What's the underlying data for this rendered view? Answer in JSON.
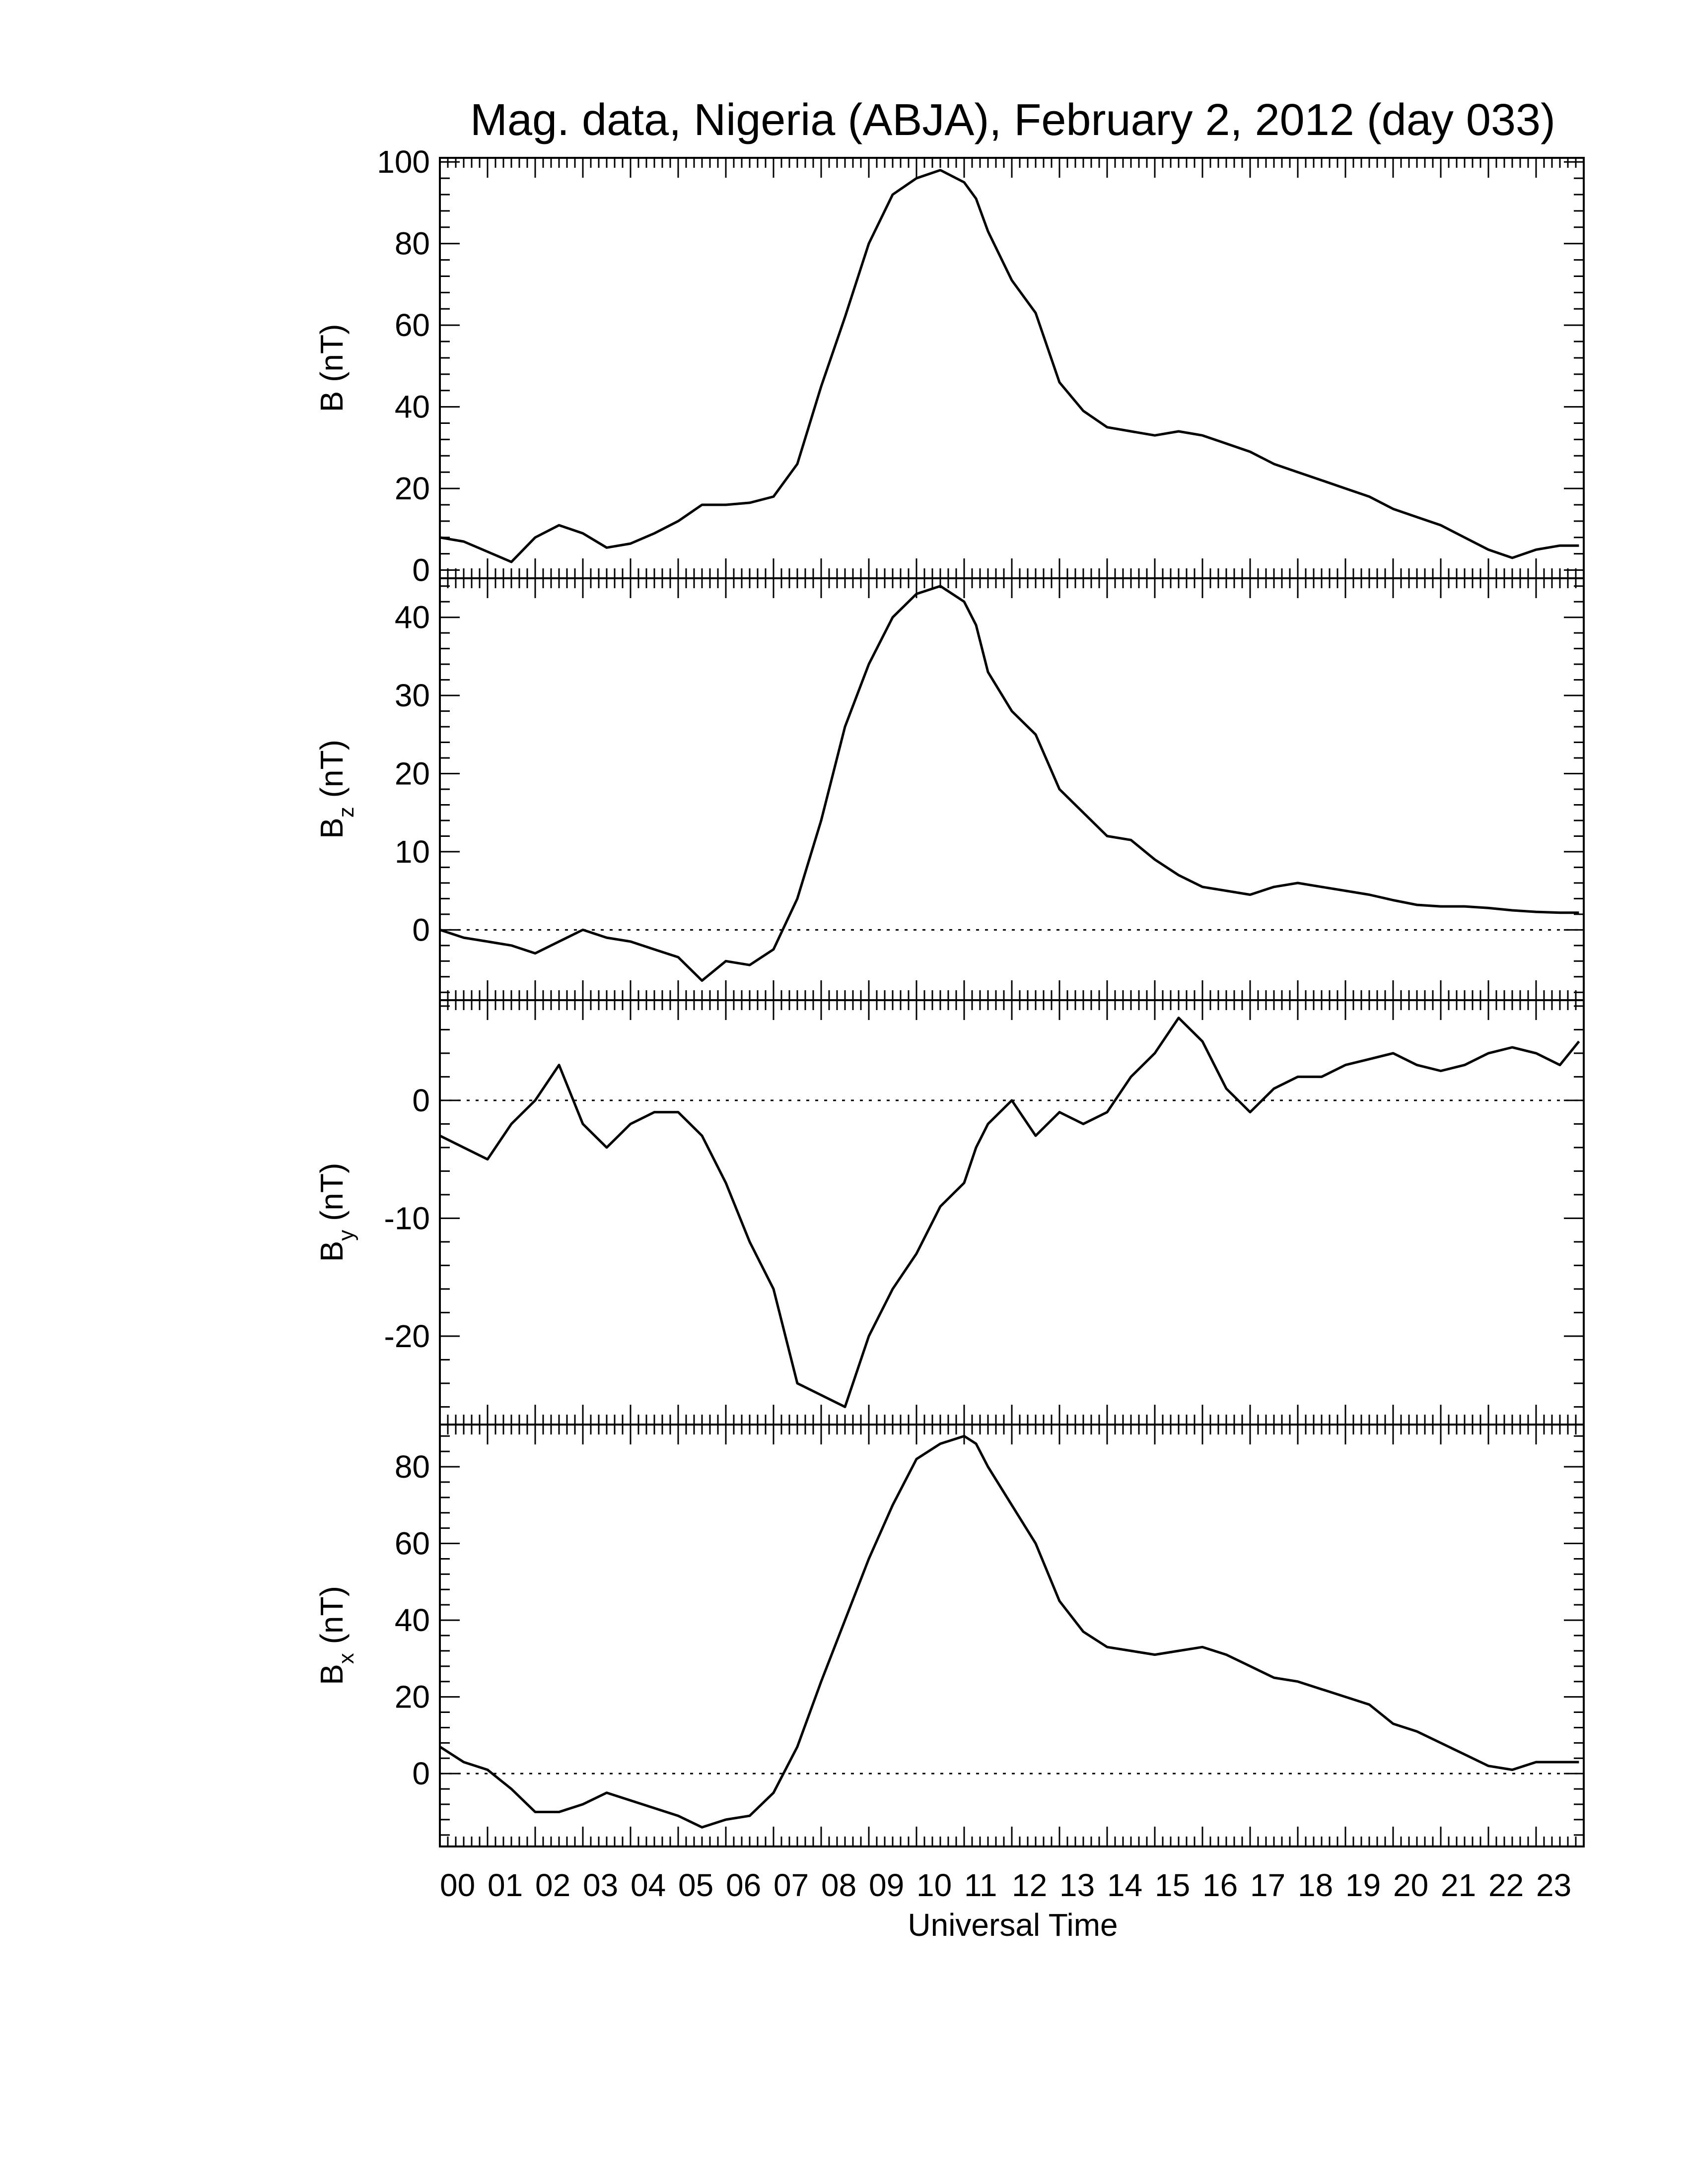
{
  "title": "Mag. data, Nigeria (ABJA), February 2, 2012 (day 033)",
  "xlabel": "Universal Time",
  "xticks": [
    "00",
    "01",
    "02",
    "03",
    "04",
    "05",
    "06",
    "07",
    "08",
    "09",
    "10",
    "11",
    "12",
    "13",
    "14",
    "15",
    "16",
    "17",
    "18",
    "19",
    "20",
    "21",
    "22",
    "23"
  ],
  "chart_data": [
    {
      "type": "line",
      "panel": "B",
      "ylabel_main": "B (nT)",
      "ylabel_sub": "",
      "ylabel_tail": "",
      "ylim": [
        -2,
        101
      ],
      "yticks": [
        0,
        20,
        40,
        60,
        80,
        100
      ],
      "zero_line": false,
      "xlim": [
        0,
        24
      ],
      "x": [
        0,
        0.5,
        1,
        1.5,
        2,
        2.5,
        3,
        3.5,
        4,
        4.5,
        5,
        5.5,
        6,
        6.5,
        7,
        7.5,
        8,
        8.5,
        9,
        9.5,
        10,
        10.5,
        11,
        11.25,
        11.5,
        12,
        12.5,
        13,
        13.5,
        14,
        14.5,
        15,
        15.5,
        16,
        16.5,
        17,
        17.5,
        18,
        18.5,
        19,
        19.5,
        20,
        20.5,
        21,
        21.5,
        22,
        22.5,
        23,
        23.5,
        23.9
      ],
      "y": [
        8,
        7,
        4.5,
        2,
        8,
        11,
        9,
        5.5,
        6.5,
        9,
        12,
        16,
        16,
        16.5,
        18,
        26,
        45,
        62,
        80,
        92,
        96,
        98,
        95,
        91,
        83,
        71,
        63,
        46,
        39,
        35,
        34,
        33,
        34,
        33,
        31,
        29,
        26,
        24,
        22,
        20,
        18,
        15,
        13,
        11,
        8,
        5,
        3,
        5,
        6,
        6
      ]
    },
    {
      "type": "line",
      "panel": "Bz",
      "ylabel_main": "B",
      "ylabel_sub": "z",
      "ylabel_tail": " (nT)",
      "ylim": [
        -9,
        45
      ],
      "yticks": [
        0,
        10,
        20,
        30,
        40
      ],
      "zero_line": true,
      "xlim": [
        0,
        24
      ],
      "x": [
        0,
        0.5,
        1,
        1.5,
        2,
        2.5,
        3,
        3.5,
        4,
        4.5,
        5,
        5.5,
        6,
        6.5,
        7,
        7.5,
        8,
        8.5,
        9,
        9.5,
        10,
        10.5,
        11,
        11.25,
        11.5,
        12,
        12.5,
        13,
        13.5,
        14,
        14.5,
        15,
        15.5,
        16,
        16.5,
        17,
        17.5,
        18,
        18.5,
        19,
        19.5,
        20,
        20.5,
        21,
        21.5,
        22,
        22.5,
        23,
        23.5,
        23.9
      ],
      "y": [
        0,
        -1,
        -1.5,
        -2,
        -3,
        -1.5,
        0,
        -1,
        -1.5,
        -2.5,
        -3.5,
        -6.5,
        -4,
        -4.5,
        -2.5,
        4,
        14,
        26,
        34,
        40,
        43,
        44,
        42,
        39,
        33,
        28,
        25,
        18,
        15,
        12,
        11.5,
        9,
        7,
        5.5,
        5,
        4.5,
        5.5,
        6,
        5.5,
        5,
        4.5,
        3.8,
        3.2,
        3,
        3,
        2.8,
        2.5,
        2.3,
        2.2,
        2.2
      ]
    },
    {
      "type": "line",
      "panel": "By",
      "ylabel_main": "B",
      "ylabel_sub": "y",
      "ylabel_tail": " (nT)",
      "ylim": [
        -27.5,
        8.5
      ],
      "yticks": [
        -20,
        -10,
        0
      ],
      "zero_line": true,
      "xlim": [
        0,
        24
      ],
      "x": [
        0,
        0.5,
        1,
        1.5,
        2,
        2.5,
        3,
        3.5,
        4,
        4.5,
        5,
        5.5,
        6,
        6.5,
        7,
        7.5,
        8,
        8.5,
        9,
        9.5,
        10,
        10.5,
        11,
        11.25,
        11.5,
        12,
        12.5,
        13,
        13.5,
        14,
        14.5,
        15,
        15.5,
        16,
        16.5,
        17,
        17.5,
        18,
        18.5,
        19,
        19.5,
        20,
        20.5,
        21,
        21.5,
        22,
        22.5,
        23,
        23.5,
        23.9
      ],
      "y": [
        -3,
        -4,
        -5,
        -2,
        0,
        3,
        -2,
        -4,
        -2,
        -1,
        -1,
        -3,
        -7,
        -12,
        -16,
        -24,
        -25,
        -26,
        -20,
        -16,
        -13,
        -9,
        -7,
        -4,
        -2,
        0,
        -3,
        -1,
        -2,
        -1,
        2,
        4,
        7,
        5,
        1,
        -1,
        1,
        2,
        2,
        3,
        3.5,
        4,
        3,
        2.5,
        3,
        4,
        4.5,
        4,
        3,
        5
      ]
    },
    {
      "type": "line",
      "panel": "Bx",
      "ylabel_main": "B",
      "ylabel_sub": "x",
      "ylabel_tail": " (nT)",
      "ylim": [
        -19,
        91
      ],
      "yticks": [
        0,
        20,
        40,
        60,
        80
      ],
      "zero_line": true,
      "xlim": [
        0,
        24
      ],
      "x": [
        0,
        0.5,
        1,
        1.5,
        2,
        2.5,
        3,
        3.5,
        4,
        4.5,
        5,
        5.5,
        6,
        6.5,
        7,
        7.5,
        8,
        8.5,
        9,
        9.5,
        10,
        10.5,
        11,
        11.25,
        11.5,
        12,
        12.5,
        13,
        13.5,
        14,
        14.5,
        15,
        15.5,
        16,
        16.5,
        17,
        17.5,
        18,
        18.5,
        19,
        19.5,
        20,
        20.5,
        21,
        21.5,
        22,
        22.5,
        23,
        23.5,
        23.9
      ],
      "y": [
        7,
        3,
        1,
        -4,
        -10,
        -10,
        -8,
        -5,
        -7,
        -9,
        -11,
        -14,
        -12,
        -11,
        -5,
        7,
        24,
        40,
        56,
        70,
        82,
        86,
        88,
        86,
        80,
        70,
        60,
        45,
        37,
        33,
        32,
        31,
        32,
        33,
        31,
        28,
        25,
        24,
        22,
        20,
        18,
        13,
        11,
        8,
        5,
        2,
        1,
        3,
        3,
        3
      ]
    }
  ]
}
